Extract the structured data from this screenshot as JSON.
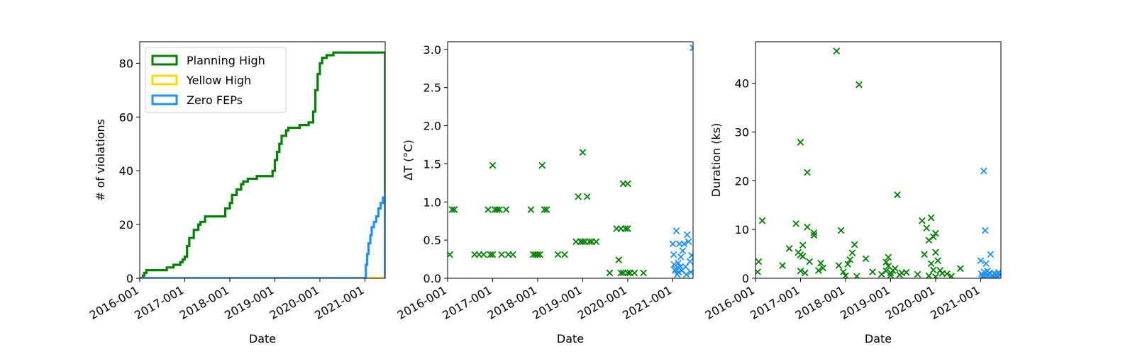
{
  "colors": {
    "planning": "#008000",
    "yellow": "#FFD700",
    "zero": "#1E90FF"
  },
  "chart_data": [
    {
      "type": "line",
      "xlabel": "Date",
      "ylabel": "# of violations",
      "xlim": [
        2016.0,
        2021.45
      ],
      "ylim": [
        0,
        88
      ],
      "xticks": [
        2016,
        2017,
        2018,
        2019,
        2020,
        2021
      ],
      "xtick_labels": [
        "2016-001",
        "2017-001",
        "2018-001",
        "2019-001",
        "2020-001",
        "2021-001"
      ],
      "yticks": [
        0,
        20,
        40,
        60,
        80
      ],
      "ytick_labels": [
        "0",
        "20",
        "40",
        "60",
        "80"
      ],
      "legend": {
        "placement": "top-left",
        "entries": [
          "Planning High",
          "Yellow High",
          "Zero FEPs"
        ]
      },
      "series": [
        {
          "name": "Planning High",
          "color": "planning",
          "step": true,
          "x": [
            2016.0,
            2016.07,
            2016.1,
            2016.15,
            2016.6,
            2016.75,
            2016.9,
            2016.95,
            2017.0,
            2017.05,
            2017.1,
            2017.2,
            2017.3,
            2017.35,
            2017.45,
            2017.8,
            2017.9,
            2018.0,
            2018.05,
            2018.15,
            2018.25,
            2018.3,
            2018.4,
            2018.5,
            2018.6,
            2018.8,
            2018.95,
            2019.0,
            2019.05,
            2019.1,
            2019.15,
            2019.25,
            2019.3,
            2019.45,
            2019.55,
            2019.75,
            2019.85,
            2019.9,
            2019.95,
            2020.0,
            2020.05,
            2020.15,
            2020.3,
            2020.5,
            2020.9,
            2021.45,
            2021.45
          ],
          "y": [
            0,
            1,
            2,
            3,
            4,
            5,
            6,
            7,
            8,
            12,
            15,
            18,
            20,
            21,
            23,
            23,
            26,
            28,
            31,
            33,
            35,
            36,
            37,
            37,
            38,
            38,
            40,
            44,
            47,
            50,
            53,
            55,
            56,
            56,
            57,
            58,
            62,
            70,
            76,
            80,
            82,
            83,
            84,
            84,
            84,
            84,
            0
          ]
        },
        {
          "name": "Yellow High",
          "color": "yellow",
          "step": true,
          "x": [
            2016.0,
            2021.45
          ],
          "y": [
            0,
            0
          ]
        },
        {
          "name": "Zero FEPs",
          "color": "zero",
          "step": true,
          "x": [
            2016.0,
            2020.98,
            2021.02,
            2021.05,
            2021.08,
            2021.12,
            2021.15,
            2021.2,
            2021.25,
            2021.3,
            2021.35,
            2021.4,
            2021.45,
            2021.45
          ],
          "y": [
            0,
            0,
            5,
            9,
            13,
            16,
            19,
            21,
            23,
            26,
            28,
            30,
            32,
            0
          ]
        }
      ]
    },
    {
      "type": "scatter",
      "xlabel": "Date",
      "ylabel": "ΔT (°C)",
      "xlim": [
        2016.0,
        2021.45
      ],
      "ylim": [
        0,
        3.1
      ],
      "xticks": [
        2016,
        2017,
        2018,
        2019,
        2020,
        2021
      ],
      "xtick_labels": [
        "2016-001",
        "2017-001",
        "2018-001",
        "2019-001",
        "2020-001",
        "2021-001"
      ],
      "yticks": [
        0,
        0.5,
        1.0,
        1.5,
        2.0,
        2.5,
        3.0
      ],
      "ytick_labels": [
        "0.0",
        "0.5",
        "1.0",
        "1.5",
        "2.0",
        "2.5",
        "3.0"
      ],
      "series": [
        {
          "name": "",
          "color": "planning",
          "marker": "x",
          "points": [
            [
              2016.1,
              0.9
            ],
            [
              2016.15,
              0.9
            ],
            [
              2016.05,
              0.31
            ],
            [
              2016.6,
              0.31
            ],
            [
              2016.7,
              0.31
            ],
            [
              2016.8,
              0.31
            ],
            [
              2016.9,
              0.9
            ],
            [
              2016.95,
              0.31
            ],
            [
              2017.0,
              0.31
            ],
            [
              2017.0,
              1.48
            ],
            [
              2017.05,
              0.9
            ],
            [
              2017.1,
              0.9
            ],
            [
              2017.15,
              0.9
            ],
            [
              2017.2,
              0.31
            ],
            [
              2017.3,
              0.9
            ],
            [
              2017.35,
              0.31
            ],
            [
              2017.45,
              0.31
            ],
            [
              2017.85,
              0.9
            ],
            [
              2017.9,
              0.31
            ],
            [
              2017.95,
              0.31
            ],
            [
              2018.0,
              0.31
            ],
            [
              2018.05,
              0.31
            ],
            [
              2018.1,
              1.48
            ],
            [
              2018.15,
              0.9
            ],
            [
              2018.2,
              0.9
            ],
            [
              2018.45,
              0.31
            ],
            [
              2018.6,
              0.31
            ],
            [
              2018.85,
              0.48
            ],
            [
              2018.9,
              1.07
            ],
            [
              2018.95,
              0.48
            ],
            [
              2019.0,
              1.65
            ],
            [
              2019.0,
              0.48
            ],
            [
              2019.05,
              0.48
            ],
            [
              2019.1,
              1.07
            ],
            [
              2019.15,
              0.48
            ],
            [
              2019.2,
              0.48
            ],
            [
              2019.3,
              0.48
            ],
            [
              2019.6,
              0.07
            ],
            [
              2019.75,
              0.65
            ],
            [
              2019.8,
              0.24
            ],
            [
              2019.85,
              0.07
            ],
            [
              2019.85,
              0.65
            ],
            [
              2019.9,
              1.24
            ],
            [
              2019.9,
              0.07
            ],
            [
              2019.95,
              0.65
            ],
            [
              2020.0,
              1.24
            ],
            [
              2020.0,
              0.65
            ],
            [
              2020.0,
              0.07
            ],
            [
              2020.05,
              0.07
            ],
            [
              2020.15,
              0.07
            ],
            [
              2020.35,
              0.07
            ]
          ]
        },
        {
          "name": "",
          "color": "zero",
          "marker": "x",
          "points": [
            [
              2021.0,
              0.45
            ],
            [
              2021.02,
              0.31
            ],
            [
              2021.05,
              0.1
            ],
            [
              2021.08,
              0.62
            ],
            [
              2021.1,
              0.05
            ],
            [
              2021.12,
              0.2
            ],
            [
              2021.15,
              0.45
            ],
            [
              2021.18,
              0.28
            ],
            [
              2021.2,
              0.1
            ],
            [
              2021.22,
              0.36
            ],
            [
              2021.25,
              0.45
            ],
            [
              2021.28,
              0.15
            ],
            [
              2021.3,
              0.05
            ],
            [
              2021.32,
              0.57
            ],
            [
              2021.35,
              0.48
            ],
            [
              2021.38,
              0.22
            ],
            [
              2021.4,
              0.08
            ],
            [
              2021.42,
              0.3
            ],
            [
              2021.03,
              0.18
            ],
            [
              2021.07,
              0.12
            ],
            [
              2021.13,
              0.08
            ],
            [
              2021.17,
              0.15
            ],
            [
              2021.45,
              3.02
            ]
          ]
        }
      ]
    },
    {
      "type": "scatter",
      "xlabel": "Date",
      "ylabel": "Duration (ks)",
      "xlim": [
        2016.0,
        2021.45
      ],
      "ylim": [
        0,
        48.5
      ],
      "xticks": [
        2016,
        2017,
        2018,
        2019,
        2020,
        2021
      ],
      "xtick_labels": [
        "2016-001",
        "2017-001",
        "2018-001",
        "2019-001",
        "2020-001",
        "2021-001"
      ],
      "yticks": [
        0,
        10,
        20,
        30,
        40
      ],
      "ytick_labels": [
        "0",
        "10",
        "20",
        "30",
        "40"
      ],
      "series": [
        {
          "name": "",
          "color": "planning",
          "marker": "x",
          "points": [
            [
              2016.05,
              1.3
            ],
            [
              2016.07,
              3.4
            ],
            [
              2016.15,
              11.8
            ],
            [
              2016.6,
              2.6
            ],
            [
              2016.75,
              6.1
            ],
            [
              2016.9,
              11.2
            ],
            [
              2016.95,
              5.3
            ],
            [
              2017.0,
              27.9
            ],
            [
              2017.0,
              1.5
            ],
            [
              2017.0,
              4.8
            ],
            [
              2017.05,
              4.5
            ],
            [
              2017.05,
              6.8
            ],
            [
              2017.1,
              1.1
            ],
            [
              2017.15,
              10.5
            ],
            [
              2017.15,
              21.7
            ],
            [
              2017.2,
              3.4
            ],
            [
              2017.3,
              9.3
            ],
            [
              2017.3,
              8.8
            ],
            [
              2017.4,
              1.6
            ],
            [
              2017.45,
              3.1
            ],
            [
              2017.5,
              2.1
            ],
            [
              2017.8,
              46.6
            ],
            [
              2017.85,
              2.6
            ],
            [
              2017.9,
              9.8
            ],
            [
              2017.95,
              1.3
            ],
            [
              2018.0,
              0.5
            ],
            [
              2018.05,
              2.9
            ],
            [
              2018.1,
              3.8
            ],
            [
              2018.15,
              5.2
            ],
            [
              2018.2,
              6.9
            ],
            [
              2018.25,
              0.4
            ],
            [
              2018.3,
              39.7
            ],
            [
              2018.45,
              4.0
            ],
            [
              2018.6,
              1.3
            ],
            [
              2018.8,
              0.8
            ],
            [
              2018.9,
              1.5
            ],
            [
              2018.9,
              3.3
            ],
            [
              2018.95,
              2.5
            ],
            [
              2018.95,
              4.3
            ],
            [
              2019.0,
              0.6
            ],
            [
              2019.0,
              1.1
            ],
            [
              2019.05,
              1.6
            ],
            [
              2019.1,
              2.0
            ],
            [
              2019.15,
              17.1
            ],
            [
              2019.2,
              0.7
            ],
            [
              2019.25,
              1.1
            ],
            [
              2019.35,
              1.2
            ],
            [
              2019.6,
              0.8
            ],
            [
              2019.7,
              11.8
            ],
            [
              2019.75,
              4.9
            ],
            [
              2019.8,
              10.3
            ],
            [
              2019.85,
              7.8
            ],
            [
              2019.85,
              0.5
            ],
            [
              2019.9,
              12.4
            ],
            [
              2019.9,
              3.0
            ],
            [
              2019.95,
              1.7
            ],
            [
              2019.95,
              8.5
            ],
            [
              2020.0,
              0.3
            ],
            [
              2020.0,
              9.2
            ],
            [
              2020.0,
              5.3
            ],
            [
              2020.05,
              3.6
            ],
            [
              2020.1,
              1.6
            ],
            [
              2020.15,
              1.0
            ],
            [
              2020.25,
              0.9
            ],
            [
              2020.35,
              0.4
            ],
            [
              2020.55,
              2.0
            ]
          ]
        },
        {
          "name": "",
          "color": "zero",
          "marker": "x",
          "points": [
            [
              2021.0,
              3.6
            ],
            [
              2021.02,
              0.9
            ],
            [
              2021.05,
              0.3
            ],
            [
              2021.07,
              22.0
            ],
            [
              2021.1,
              9.8
            ],
            [
              2021.12,
              3.0
            ],
            [
              2021.15,
              1.5
            ],
            [
              2021.18,
              0.6
            ],
            [
              2021.2,
              1.1
            ],
            [
              2021.22,
              4.9
            ],
            [
              2021.25,
              0.5
            ],
            [
              2021.28,
              0.3
            ],
            [
              2021.3,
              1.0
            ],
            [
              2021.33,
              0.2
            ],
            [
              2021.35,
              0.8
            ],
            [
              2021.38,
              0.4
            ],
            [
              2021.4,
              1.2
            ],
            [
              2021.42,
              0.7
            ],
            [
              2021.04,
              0.5
            ],
            [
              2021.08,
              1.3
            ],
            [
              2021.13,
              0.6
            ]
          ]
        }
      ]
    }
  ]
}
